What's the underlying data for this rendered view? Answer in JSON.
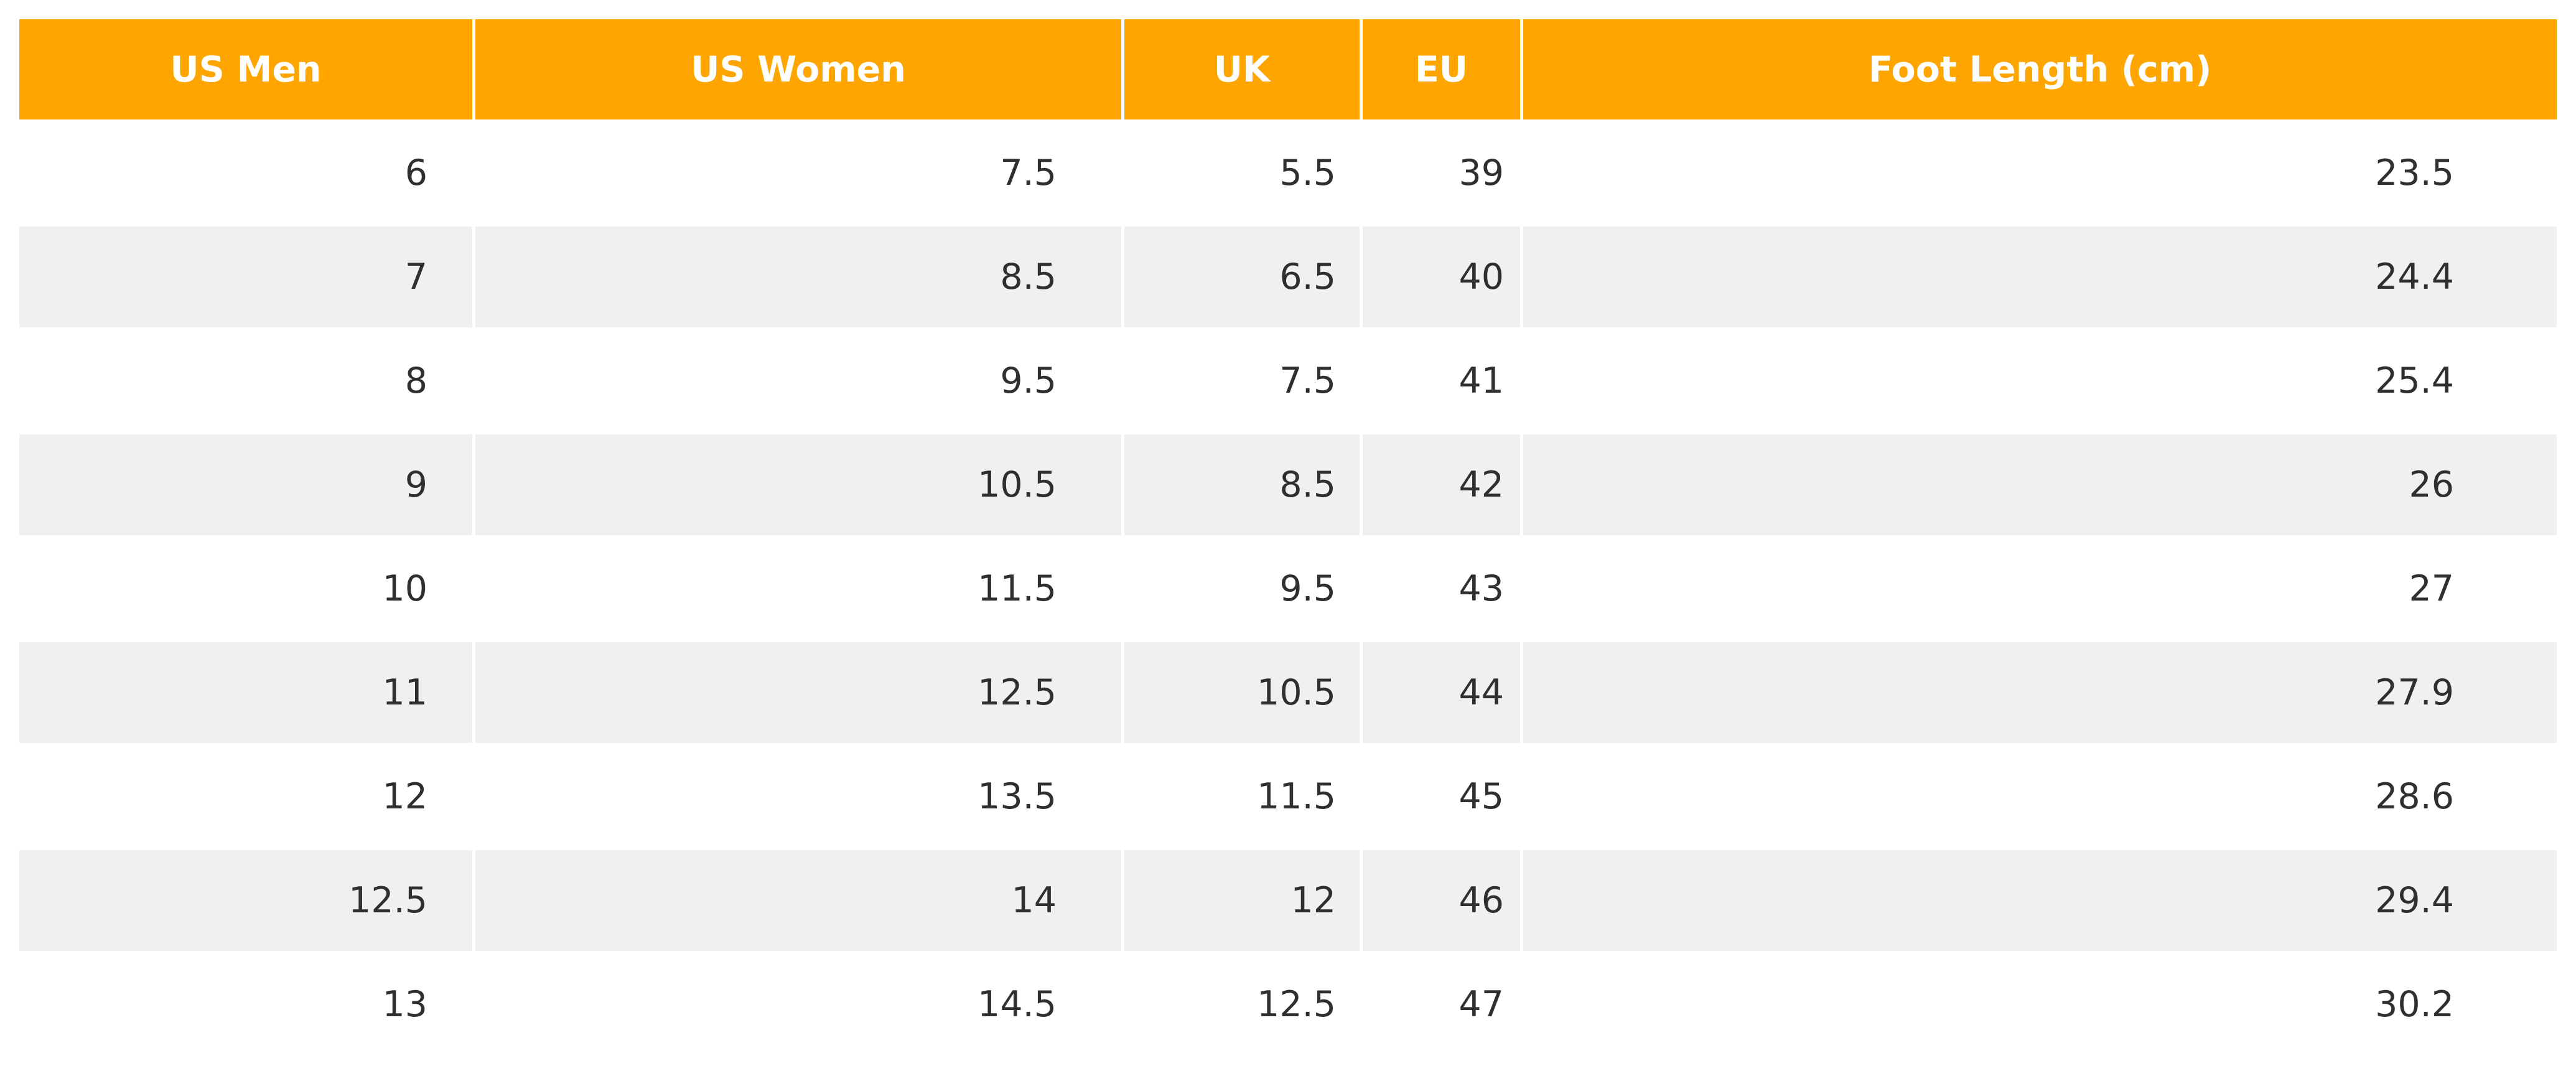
{
  "chart_data": {
    "type": "table",
    "header_color": "#FFA500",
    "stripe_color": "#F0F0F0",
    "columns": [
      "US Men",
      "US Women",
      "UK",
      "EU",
      "Foot Length (cm)"
    ],
    "rows": [
      [
        "6",
        "7.5",
        "5.5",
        "39",
        "23.5"
      ],
      [
        "7",
        "8.5",
        "6.5",
        "40",
        "24.4"
      ],
      [
        "8",
        "9.5",
        "7.5",
        "41",
        "25.4"
      ],
      [
        "9",
        "10.5",
        "8.5",
        "42",
        "26"
      ],
      [
        "10",
        "11.5",
        "9.5",
        "43",
        "27"
      ],
      [
        "11",
        "12.5",
        "10.5",
        "44",
        "27.9"
      ],
      [
        "12",
        "13.5",
        "11.5",
        "45",
        "28.6"
      ],
      [
        "12.5",
        "14",
        "12",
        "46",
        "29.4"
      ],
      [
        "13",
        "14.5",
        "12.5",
        "47",
        "30.2"
      ]
    ]
  }
}
